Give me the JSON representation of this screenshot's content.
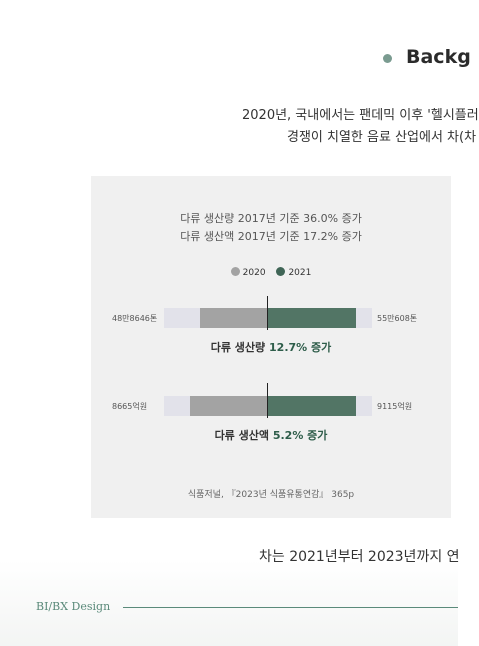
{
  "section": {
    "title": "Backg"
  },
  "intro": {
    "line1": "2020년, 국내에서는 팬데믹 이후 '헬시플러",
    "line2": "경쟁이 치열한 음료 산업에서 차(차"
  },
  "infographic": {
    "stat1": "다류 생산량 2017년 기준 36.0% 증가",
    "stat2": "다류 생산액 2017년 기준 17.2% 증가",
    "legend": [
      {
        "label": "2020",
        "color": "#a3a3a3"
      },
      {
        "label": "2021",
        "color": "#3f6556"
      }
    ],
    "rows": [
      {
        "left_value": "48만8646톤",
        "right_value": "55만608톤",
        "label": "다류 생산량",
        "growth": "12.7% 증가",
        "v2020_share": 0.32,
        "v2021_share": 0.43
      },
      {
        "left_value": "8665억원",
        "right_value": "9115억원",
        "label": "다류 생산액",
        "growth": "5.2% 증가",
        "v2020_share": 0.37,
        "v2021_share": 0.43
      }
    ],
    "source": "식품저널, 『2023년 식품유통연감』 365p"
  },
  "bottom_text": "차는 2021년부터 2023년까지 연",
  "footer": {
    "brand": "BI/BX Design"
  }
}
